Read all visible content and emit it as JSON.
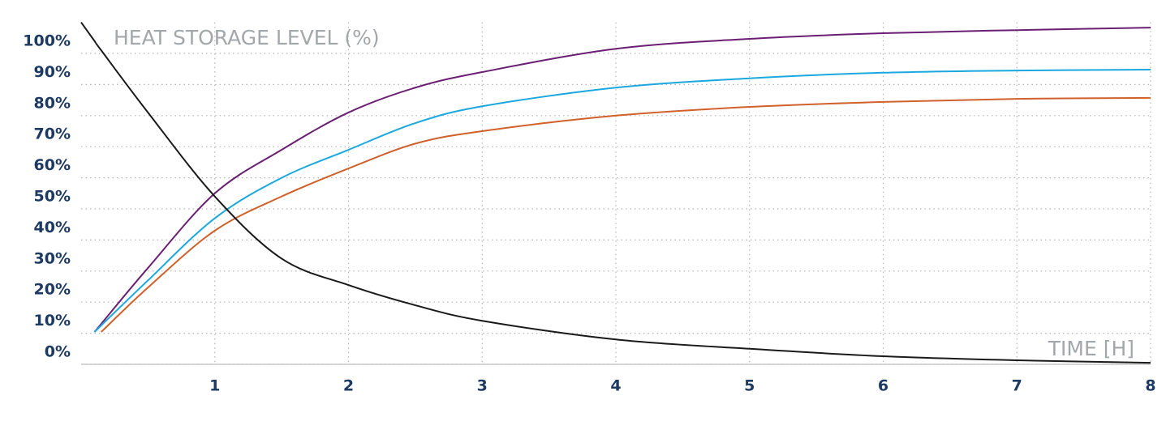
{
  "chart_data": {
    "type": "line",
    "title": "HEAT STORAGE LEVEL (%)",
    "x_label": "TIME [H]",
    "x": [
      0,
      0.1,
      0.15,
      0.5,
      1,
      1.5,
      2,
      2.5,
      3,
      4,
      5,
      6,
      7,
      8
    ],
    "series": [
      {
        "color": "#6b1f73",
        "values": [
          null,
          10.4,
          13,
          31,
          55,
          69,
          81,
          89,
          94,
          101.5,
          104.7,
          106.5,
          107.5,
          108.3
        ]
      },
      {
        "color": "#1ba8de",
        "values": [
          null,
          10.4,
          12.5,
          27,
          47,
          60,
          69,
          77.6,
          83,
          89,
          92,
          93.8,
          94.5,
          94.8
        ]
      },
      {
        "color": "#d0612a",
        "values": [
          null,
          null,
          10.4,
          24.7,
          43,
          54,
          63,
          71,
          75,
          80,
          82.8,
          84.4,
          85.4,
          85.7
        ]
      },
      {
        "color": "#1a1a1a",
        "values": [
          110,
          104,
          101,
          81,
          54,
          34,
          25.5,
          19,
          14,
          8,
          5,
          2.6,
          1.3,
          0.5
        ]
      }
    ],
    "xlim": [
      0,
      8
    ],
    "xticks": [
      1,
      2,
      3,
      4,
      5,
      6,
      7,
      8
    ],
    "ylim": [
      0,
      110
    ],
    "yticks": [
      {
        "value": 0,
        "label": "0%"
      },
      {
        "value": 10,
        "label": "10%"
      },
      {
        "value": 20,
        "label": "20%"
      },
      {
        "value": 30,
        "label": "30%"
      },
      {
        "value": 40,
        "label": "40%"
      },
      {
        "value": 50,
        "label": "50%"
      },
      {
        "value": 60,
        "label": "60%"
      },
      {
        "value": 70,
        "label": "70%"
      },
      {
        "value": 80,
        "label": "80%"
      },
      {
        "value": 90,
        "label": "90%"
      },
      {
        "value": 100,
        "label": "100%"
      }
    ],
    "grid": true
  }
}
